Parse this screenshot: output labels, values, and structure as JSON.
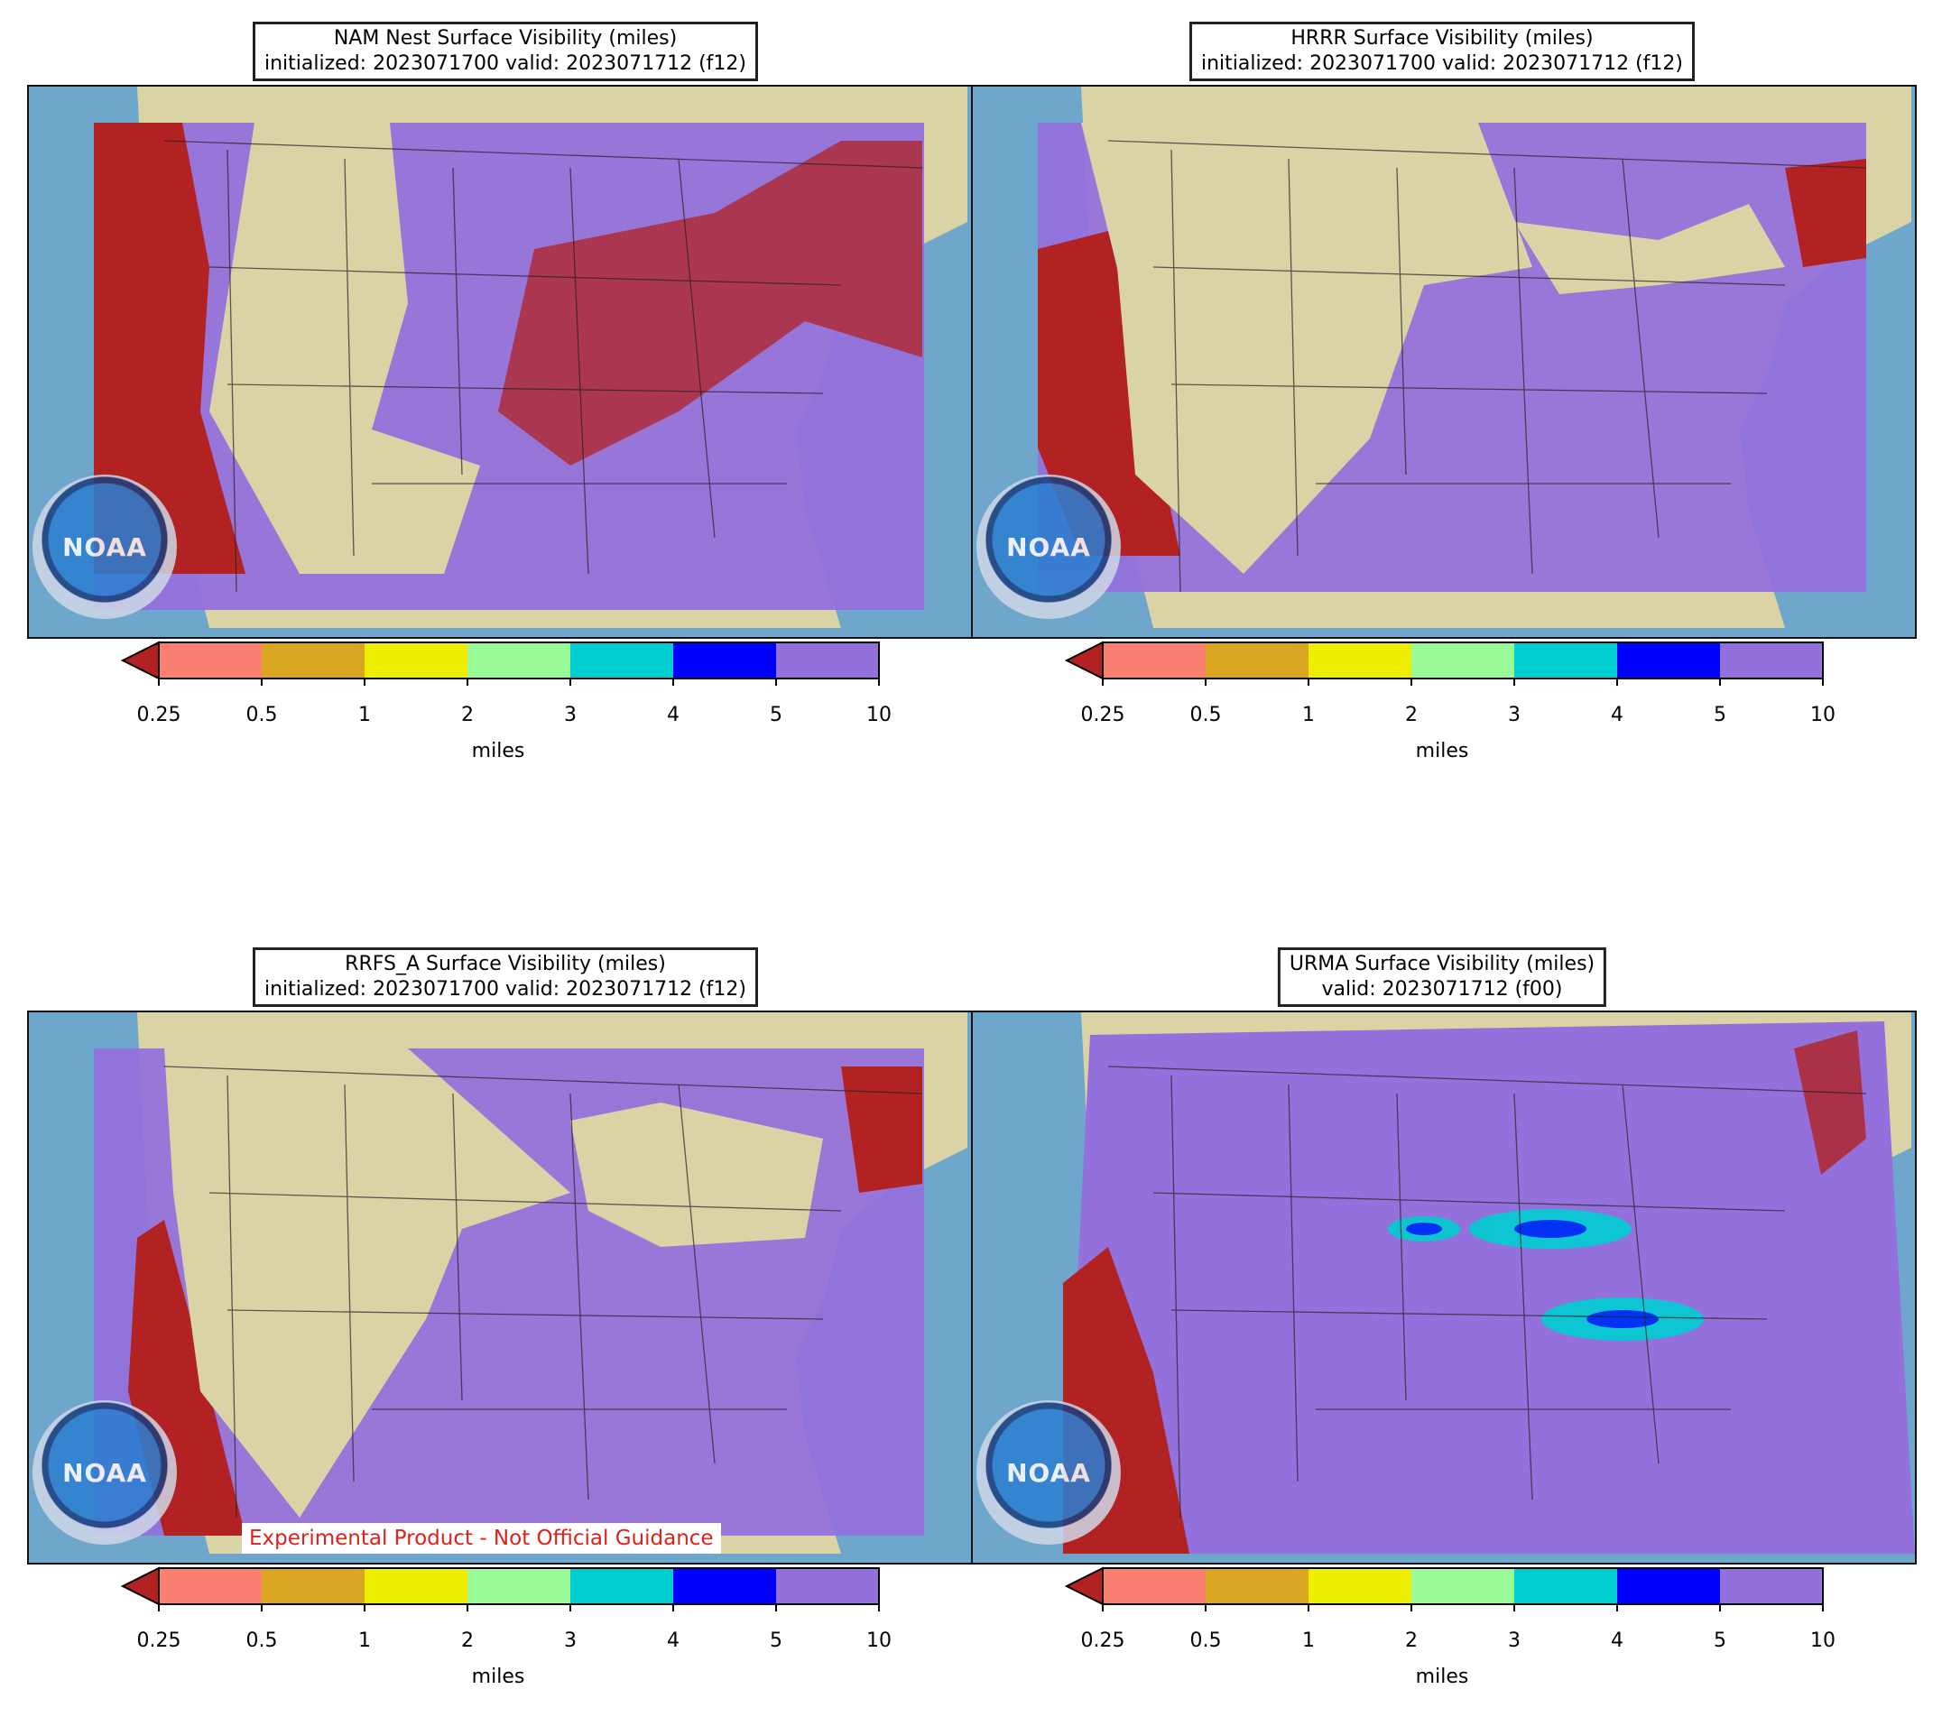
{
  "panels": [
    {
      "title_line1": "NAM Nest Surface Visibility (miles)",
      "title_line2": "initialized: 2023071700 valid: 2023071712 (f12)"
    },
    {
      "title_line1": "HRRR Surface Visibility (miles)",
      "title_line2": "initialized: 2023071700 valid: 2023071712 (f12)"
    },
    {
      "title_line1": "RRFS_A Surface Visibility (miles)",
      "title_line2": "initialized: 2023071700 valid: 2023071712 (f12)",
      "watermark": "Experimental Product - Not Official Guidance"
    },
    {
      "title_line1": "URMA Surface Visibility (miles)",
      "title_line2": "valid: 2023071712 (f00)"
    }
  ],
  "logo_text": "NOAA",
  "colorbar": {
    "ticks": [
      "0.25",
      "0.5",
      "1",
      "2",
      "3",
      "4",
      "5",
      "10"
    ],
    "colors": [
      "#fa8072",
      "#daa520",
      "#eeee00",
      "#98fb98",
      "#00ced1",
      "#0000ff",
      "#9370db"
    ],
    "under_color": "#b22222",
    "unit": "miles"
  },
  "colors": {
    "ocean": "#6fa6cc",
    "land": "#d9d3a6",
    "vis_high": "#9370db",
    "vis_low": "#b22222"
  }
}
